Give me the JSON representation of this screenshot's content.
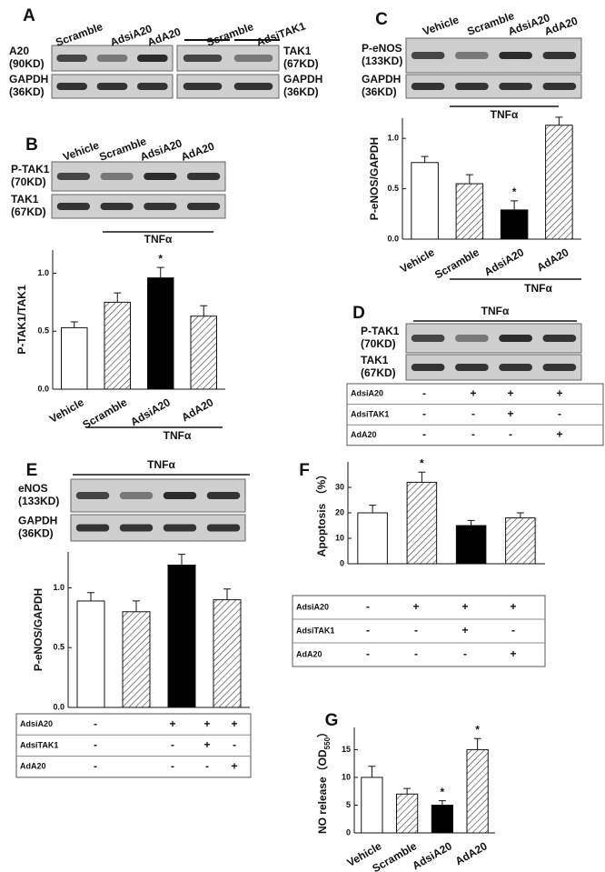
{
  "blots": [
    {
      "panel": "A",
      "lanes_header": [
        "Scramble",
        "AdsiA20",
        "AdA20"
      ],
      "rows": [
        [
          "A20",
          "(90KD)"
        ],
        [
          "GAPDH",
          "(36KD)"
        ]
      ]
    },
    {
      "lanes_header": [
        "Scramble",
        "AdsiTAK1"
      ],
      "rows": [
        [
          "TAK1",
          "(67KD)"
        ],
        [
          "GAPDH",
          "(36KD)"
        ]
      ]
    },
    {
      "panel": "B",
      "lanes_header": [
        "Vehicle",
        "Scramble",
        "AdsiA20",
        "AdA20"
      ],
      "rows": [
        [
          "P-TAK1",
          "(70KD)"
        ],
        [
          "TAK1",
          "(67KD)"
        ]
      ],
      "treatment": "TNFα"
    },
    {
      "panel": "C",
      "lanes_header": [
        "Vehicle",
        "Scramble",
        "AdsiA20",
        "AdA20"
      ],
      "rows": [
        [
          "P-eNOS",
          "(133KD)"
        ],
        [
          "GAPDH",
          "(36KD)"
        ]
      ],
      "treatment": "TNFα"
    },
    {
      "panel": "D",
      "rows": [
        [
          "P-TAK1",
          "(70KD)"
        ],
        [
          "TAK1",
          "(67KD)"
        ]
      ],
      "treatment": "TNFα",
      "conditions": [
        [
          "AdsiA20",
          "-",
          "+",
          "+",
          "+"
        ],
        [
          "AdsiTAK1",
          "-",
          "-",
          "+",
          "-"
        ],
        [
          "AdA20",
          "-",
          "-",
          "-",
          "+"
        ]
      ]
    },
    {
      "panel": "E",
      "rows": [
        [
          "eNOS",
          "(133KD)"
        ],
        [
          "GAPDH",
          "(36KD)"
        ]
      ],
      "treatment": "TNFα"
    }
  ],
  "chart_data": [
    {
      "type": "bar",
      "ylabel": "P-TAK1/TAK1",
      "categories": [
        "Vehicle",
        "Scramble",
        "AdsiA20",
        "AdA20"
      ],
      "values": [
        0.53,
        0.75,
        0.96,
        0.63
      ],
      "errors": [
        0.05,
        0.08,
        0.09,
        0.09
      ],
      "annotations": [
        null,
        null,
        "*",
        null
      ],
      "fills": [
        "white",
        "hatch",
        "black",
        "hatch"
      ],
      "treatment": "TNFα",
      "ylim": [
        0,
        1.2
      ],
      "yticks": [
        {
          "value": 0,
          "label": "0.0"
        },
        {
          "value": 0.5,
          "label": "0.5"
        },
        {
          "value": 1,
          "label": "1.0"
        }
      ]
    },
    {
      "type": "bar",
      "ylabel": "P-eNOS/GAPDH",
      "categories": [
        "Vehicle",
        "Scramble",
        "AdsiA20",
        "AdA20"
      ],
      "values": [
        0.76,
        0.55,
        0.29,
        1.13
      ],
      "errors": [
        0.06,
        0.09,
        0.09,
        0.08
      ],
      "annotations": [
        null,
        null,
        "*",
        null
      ],
      "fills": [
        "white",
        "hatch",
        "black",
        "hatch"
      ],
      "treatment": "TNFα",
      "ylim": [
        0,
        1.2
      ],
      "yticks": [
        {
          "value": 0,
          "label": "0.0"
        },
        {
          "value": 0.5,
          "label": "0.5"
        },
        {
          "value": 1,
          "label": "1.0"
        }
      ]
    },
    {
      "type": "bar",
      "ylabel": "P-eNOS/GAPDH",
      "categories": [
        null,
        null,
        null,
        null
      ],
      "values": [
        0.89,
        0.8,
        1.19,
        0.9
      ],
      "errors": [
        0.07,
        0.09,
        0.09,
        0.09
      ],
      "fills": [
        "white",
        "hatch",
        "black",
        "hatch"
      ],
      "ylim": [
        0,
        1.3
      ],
      "yticks": [
        {
          "value": 0,
          "label": "0.0"
        },
        {
          "value": 0.5,
          "label": "0.5"
        },
        {
          "value": 1,
          "label": "1.0"
        }
      ],
      "conditions": [
        [
          "AdsiA20",
          "-",
          "+",
          "+",
          "+"
        ],
        [
          "AdsiTAK1",
          "-",
          "-",
          "+",
          "-"
        ],
        [
          "AdA20",
          "-",
          "-",
          "-",
          "+"
        ]
      ]
    },
    {
      "type": "bar",
      "panel": "F",
      "ylabel": "Apoptosis （%）",
      "categories": [
        null,
        null,
        null,
        null
      ],
      "values": [
        20,
        32,
        15,
        18
      ],
      "errors": [
        3,
        4,
        2,
        2
      ],
      "annotations": [
        null,
        "*",
        null,
        null
      ],
      "fills": [
        "white",
        "hatch",
        "black",
        "hatch"
      ],
      "ylim": [
        0,
        40
      ],
      "yticks": [
        0,
        10,
        20,
        30
      ],
      "conditions": [
        [
          "AdsiA20",
          "-",
          "+",
          "+",
          "+"
        ],
        [
          "AdsiTAK1",
          "-",
          "-",
          "+",
          "-"
        ],
        [
          "AdA20",
          "-",
          "-",
          "-",
          "+"
        ]
      ]
    },
    {
      "type": "bar",
      "panel": "G",
      "ylabel": "NO release（OD",
      "ylabel_sub": "550",
      "ylabel_end": "）",
      "categories": [
        "Vehicle",
        "Scramble",
        "AdsiA20",
        "AdA20"
      ],
      "values": [
        10,
        7,
        5,
        15
      ],
      "errors": [
        2,
        1,
        0.8,
        2
      ],
      "annotations": [
        null,
        null,
        "*",
        "*"
      ],
      "fills": [
        "white",
        "hatch",
        "black",
        "hatch"
      ],
      "ylim": [
        0,
        19
      ],
      "yticks": [
        0,
        5,
        10,
        15
      ]
    }
  ]
}
